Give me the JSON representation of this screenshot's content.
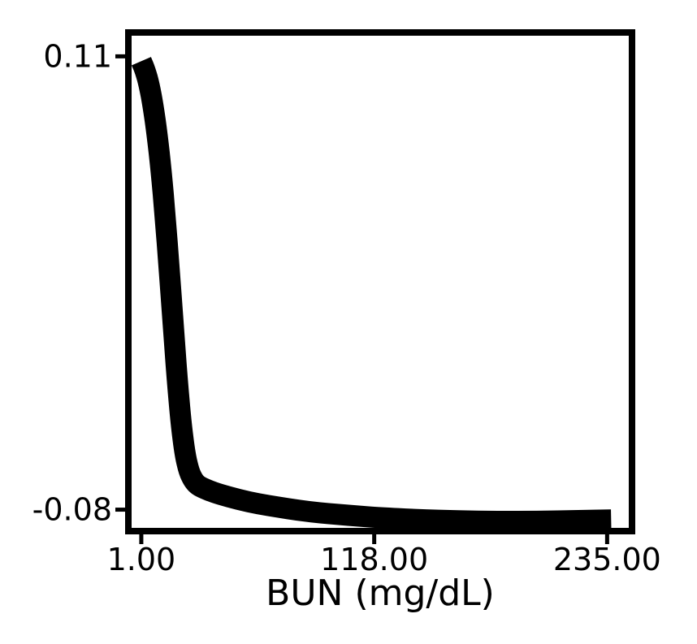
{
  "chart_data": {
    "type": "line",
    "title": "",
    "xlabel": "BUN (mg/dL)",
    "ylabel": "",
    "x_ticks": [
      1.0,
      118.0,
      235.0
    ],
    "x_tick_labels": [
      "1.00",
      "118.00",
      "235.00"
    ],
    "y_ticks": [
      0.11,
      -0.08
    ],
    "y_tick_labels": [
      "0.11",
      "-0.08"
    ],
    "xlim": [
      -5.5,
      247.5
    ],
    "ylim": [
      -0.089,
      0.12
    ],
    "grid": false,
    "legend": "none",
    "line_color": "#000000",
    "series": [
      {
        "x": [
          1,
          3,
          5,
          7,
          9,
          11,
          13,
          15,
          17,
          19,
          21,
          23,
          25,
          27,
          29,
          31,
          35,
          40,
          50,
          60,
          70,
          80,
          90,
          100,
          110,
          120,
          140,
          160,
          180,
          200,
          220,
          237
        ],
        "y": [
          0.108,
          0.104,
          0.098,
          0.089,
          0.077,
          0.062,
          0.043,
          0.021,
          -0.002,
          -0.025,
          -0.044,
          -0.057,
          -0.064,
          -0.0675,
          -0.0695,
          -0.0705,
          -0.072,
          -0.0735,
          -0.0758,
          -0.0776,
          -0.079,
          -0.0803,
          -0.0813,
          -0.082,
          -0.0827,
          -0.0833,
          -0.0842,
          -0.0847,
          -0.0849,
          -0.0849,
          -0.0846,
          -0.0843
        ]
      }
    ]
  }
}
